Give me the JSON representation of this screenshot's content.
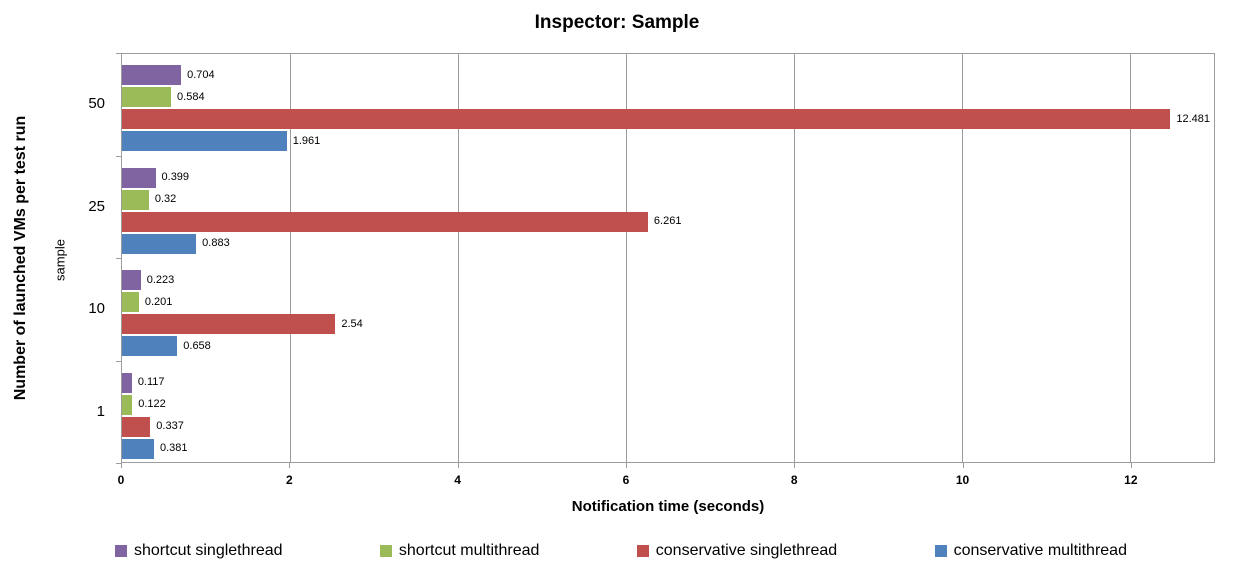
{
  "chart_data": {
    "type": "bar",
    "orientation": "horizontal",
    "title": "Inspector: Sample",
    "ylabel": "Number of launched VMs per test run",
    "ylabel_secondary": "sample",
    "xlabel": "Notification time (seconds)",
    "categories": [
      "50",
      "25",
      "10",
      "1"
    ],
    "series": [
      {
        "name": "shortcut singlethread",
        "color": "#8064A2",
        "values": [
          0.704,
          0.399,
          0.223,
          0.117
        ]
      },
      {
        "name": "shortcut multithread",
        "color": "#9BBB59",
        "values": [
          0.584,
          0.32,
          0.201,
          0.122
        ]
      },
      {
        "name": "conservative singlethread",
        "color": "#C0504D",
        "values": [
          12.481,
          6.261,
          2.54,
          0.337
        ]
      },
      {
        "name": "conservative multithread",
        "color": "#4F81BD",
        "values": [
          1.961,
          0.883,
          0.658,
          0.381
        ]
      }
    ],
    "x_axis": {
      "min": 0,
      "max": 13,
      "ticks": [
        0,
        2,
        4,
        6,
        8,
        10,
        12
      ]
    },
    "grid": true,
    "legend_position": "bottom",
    "data_labels": true,
    "colors": {
      "background": "#FFFFFF",
      "gridline": "#9C9C9C",
      "axis_line": "#9C9C9C",
      "text": "#000000"
    }
  }
}
